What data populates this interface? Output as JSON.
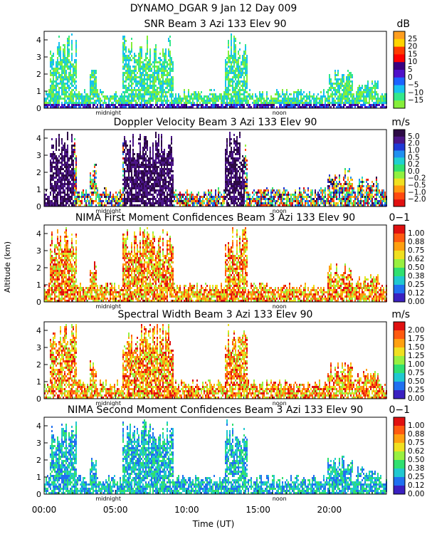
{
  "header": {
    "line1": "DYNAMO_DGAR    9 Jan 12 Day 009"
  },
  "axes": {
    "ylabel": "Altitude (km)",
    "xlabel": "Time (UT)",
    "y_ticks": [
      "0",
      "1",
      "2",
      "3",
      "4"
    ],
    "x_ticks": [
      "00:00",
      "05:00",
      "10:00",
      "15:00",
      "20:00"
    ],
    "midnight_label": "midnight",
    "noon_label": "noon"
  },
  "chart_data": [
    {
      "type": "heatmap",
      "title": "SNR Beam 3 Azi 133 Elev 90",
      "unit": "dB",
      "xlim": [
        0,
        24
      ],
      "ylim": [
        0,
        4.5
      ],
      "colorbar_labels": [
        "25",
        "20",
        "15",
        "10",
        "5",
        "0",
        "−5",
        "−10",
        "−15"
      ],
      "colors": [
        "#ff9e1f",
        "#ffd400",
        "#ff3b00",
        "#ff0000",
        "#3a0080",
        "#4f10c8",
        "#1c62ff",
        "#18c0f0",
        "#33e88a",
        "#86ee3a"
      ]
    },
    {
      "type": "heatmap",
      "title": "Doppler Velocity Beam 3 Azi 133 Elev 90",
      "unit": "m/s",
      "xlim": [
        0,
        24
      ],
      "ylim": [
        0,
        4.5
      ],
      "colorbar_labels": [
        "5.0",
        "2.0",
        "1.0",
        "0.5",
        "0.2",
        "0.0",
        "−0.2",
        "−0.5",
        "−1.0",
        "−2.0"
      ],
      "colors": [
        "#2d0a45",
        "#4b1588",
        "#1f38d6",
        "#2090f0",
        "#20d0d0",
        "#30e070",
        "#90f040",
        "#f0e020",
        "#ff9a10",
        "#ff4a10",
        "#e01010"
      ]
    },
    {
      "type": "heatmap",
      "title": "NIMA First Moment Confidences Beam 3 Azi 133 Elev 90",
      "unit": "0−1",
      "xlim": [
        0,
        24
      ],
      "ylim": [
        0,
        4.5
      ],
      "colorbar_labels": [
        "1.00",
        "0.88",
        "0.75",
        "0.62",
        "0.50",
        "0.38",
        "0.25",
        "0.12",
        "0.00"
      ],
      "colors": [
        "#e01010",
        "#ff5a10",
        "#ffa010",
        "#f0e020",
        "#98f040",
        "#30e070",
        "#20c8d0",
        "#2070f0",
        "#3a20c0"
      ]
    },
    {
      "type": "heatmap",
      "title": "Spectral Width Beam 3 Azi 133 Elev 90",
      "unit": "m/s",
      "xlim": [
        0,
        24
      ],
      "ylim": [
        0,
        4.5
      ],
      "colorbar_labels": [
        "2.00",
        "1.75",
        "1.50",
        "1.25",
        "1.00",
        "0.75",
        "0.50",
        "0.25",
        "0.00"
      ],
      "colors": [
        "#e01010",
        "#ff5a10",
        "#ffa010",
        "#f0e020",
        "#98f040",
        "#30e070",
        "#20c8d0",
        "#2070f0",
        "#3a20c0"
      ]
    },
    {
      "type": "heatmap",
      "title": "NIMA Second Moment Confidences Beam 3 Azi 133 Elev 90",
      "unit": "0−1",
      "xlim": [
        0,
        24
      ],
      "ylim": [
        0,
        4.5
      ],
      "colorbar_labels": [
        "1.00",
        "0.88",
        "0.75",
        "0.62",
        "0.50",
        "0.38",
        "0.25",
        "0.12",
        "0.00"
      ],
      "colors": [
        "#e01010",
        "#ff5a10",
        "#ffa010",
        "#f0e020",
        "#98f040",
        "#30e070",
        "#20c8d0",
        "#2070f0",
        "#3a20c0"
      ]
    }
  ]
}
